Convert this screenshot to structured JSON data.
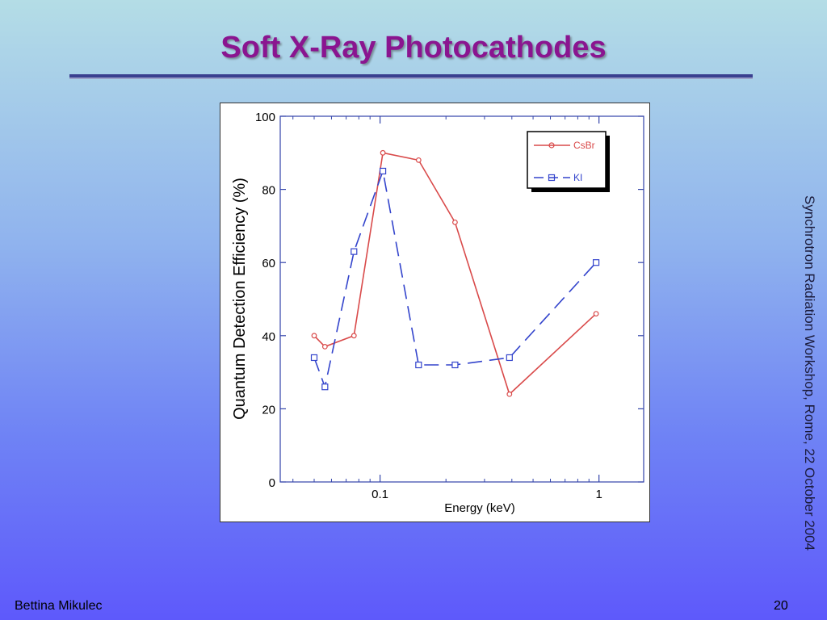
{
  "slide": {
    "title": "Soft X-Ray Photocathodes",
    "side_text": "Synchrotron Radiation Workshop, Rome, 22 October 2004",
    "author": "Bettina Mikulec",
    "page_number": "20"
  },
  "chart_data": {
    "type": "line",
    "title": "",
    "xlabel": "Energy (keV)",
    "ylabel": "Quantum Detection Efficiency (%)",
    "xscale": "log",
    "xlim": [
      0.035,
      1.6
    ],
    "ylim": [
      0,
      100
    ],
    "yticks": [
      0,
      20,
      40,
      60,
      80,
      100
    ],
    "ytick_labels": [
      "0",
      "20",
      "40",
      "60",
      "80",
      "100"
    ],
    "xticks": [
      0.1,
      1
    ],
    "xtick_labels": [
      "0.1",
      "1"
    ],
    "grid": false,
    "legend": "top-right",
    "series": [
      {
        "name": "CsBr",
        "color": "#d94a4a",
        "style": "solid",
        "marker": "circle",
        "x": [
          0.05,
          0.056,
          0.076,
          0.103,
          0.15,
          0.22,
          0.39,
          0.97
        ],
        "y": [
          40,
          37,
          40,
          90,
          88,
          71,
          24,
          46
        ]
      },
      {
        "name": "KI",
        "color": "#3344cc",
        "style": "dashed",
        "marker": "square",
        "x": [
          0.05,
          0.056,
          0.076,
          0.103,
          0.15,
          0.22,
          0.39,
          0.97
        ],
        "y": [
          34,
          26,
          63,
          85,
          32,
          32,
          34,
          60
        ]
      }
    ]
  }
}
